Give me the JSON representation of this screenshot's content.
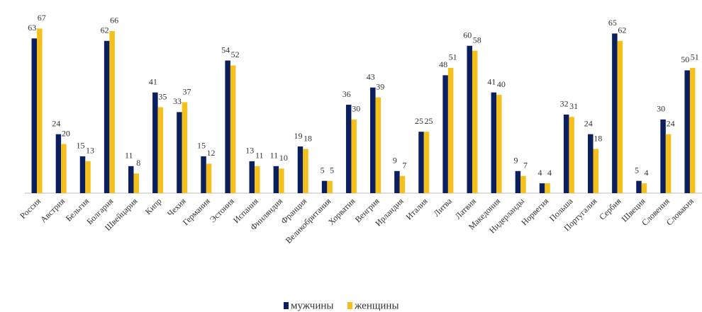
{
  "chart_data": {
    "type": "bar",
    "categories": [
      "Россия",
      "Австрия",
      "Бельгия",
      "Болгария",
      "Швейцария",
      "Кипр",
      "Чехия",
      "Германия",
      "Эстония",
      "Испания",
      "Финляндия",
      "Франция",
      "Великобритания",
      "Хорватия",
      "Венгрия",
      "Ирландия",
      "Италия",
      "Литва",
      "Латвия",
      "Македония",
      "Нидерланды",
      "Норвегия",
      "Польша",
      "Португалия",
      "Сербия",
      "Швеция",
      "Словения",
      "Словакия"
    ],
    "series": [
      {
        "name": "мужчины",
        "color": "#0b1f5e",
        "values": [
          63,
          24,
          15,
          62,
          11,
          41,
          33,
          15,
          54,
          13,
          11,
          19,
          5,
          36,
          43,
          9,
          25,
          48,
          60,
          41,
          9,
          4,
          32,
          24,
          65,
          5,
          30,
          50
        ]
      },
      {
        "name": "женщины",
        "color": "#f6c01c",
        "values": [
          67,
          20,
          13,
          66,
          8,
          35,
          37,
          12,
          52,
          11,
          10,
          18,
          5,
          30,
          39,
          7,
          25,
          51,
          58,
          40,
          7,
          4,
          31,
          18,
          62,
          4,
          24,
          51
        ]
      }
    ],
    "ylim": [
      0,
      70
    ]
  }
}
